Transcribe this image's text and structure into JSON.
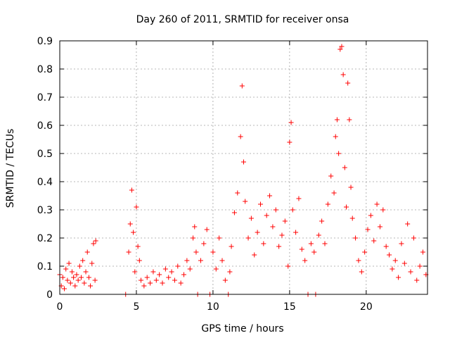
{
  "chart_data": {
    "type": "scatter",
    "title": "Day 260 of 2011, SRMTID for receiver onsa",
    "xlabel": "GPS time / hours",
    "ylabel": "SRMTID / TECUs",
    "xlim": [
      0,
      24
    ],
    "ylim": [
      0,
      0.9
    ],
    "x_ticks": [
      0,
      5,
      10,
      15,
      20
    ],
    "x_tick_labels": [
      "0",
      "5",
      "10",
      "15",
      "20"
    ],
    "y_ticks": [
      0,
      0.1,
      0.2,
      0.3,
      0.4,
      0.5,
      0.6,
      0.7,
      0.8,
      0.9
    ],
    "y_tick_labels": [
      "0",
      "0.1",
      "0.2",
      "0.3",
      "0.4",
      "0.5",
      "0.6",
      "0.7",
      "0.8",
      "0.9"
    ],
    "grid": true,
    "marker": "+",
    "color": "#ff0000",
    "series": [
      {
        "name": "SRMTID",
        "points": [
          [
            0.0,
            0.07
          ],
          [
            0.1,
            0.03
          ],
          [
            0.2,
            0.06
          ],
          [
            0.3,
            0.02
          ],
          [
            0.4,
            0.09
          ],
          [
            0.5,
            0.05
          ],
          [
            0.6,
            0.11
          ],
          [
            0.7,
            0.04
          ],
          [
            0.8,
            0.08
          ],
          [
            0.9,
            0.06
          ],
          [
            1.0,
            0.03
          ],
          [
            1.1,
            0.07
          ],
          [
            1.2,
            0.05
          ],
          [
            1.3,
            0.1
          ],
          [
            1.4,
            0.06
          ],
          [
            1.5,
            0.12
          ],
          [
            1.6,
            0.04
          ],
          [
            1.7,
            0.08
          ],
          [
            1.8,
            0.15
          ],
          [
            1.9,
            0.06
          ],
          [
            2.0,
            0.03
          ],
          [
            2.1,
            0.11
          ],
          [
            2.2,
            0.18
          ],
          [
            2.3,
            0.05
          ],
          [
            2.35,
            0.19
          ],
          [
            4.3,
            0.0
          ],
          [
            4.5,
            0.15
          ],
          [
            4.6,
            0.25
          ],
          [
            4.7,
            0.37
          ],
          [
            4.8,
            0.22
          ],
          [
            4.9,
            0.08
          ],
          [
            5.0,
            0.31
          ],
          [
            5.1,
            0.17
          ],
          [
            5.2,
            0.12
          ],
          [
            5.3,
            0.05
          ],
          [
            5.5,
            0.03
          ],
          [
            5.7,
            0.06
          ],
          [
            5.9,
            0.04
          ],
          [
            6.1,
            0.08
          ],
          [
            6.3,
            0.05
          ],
          [
            6.5,
            0.07
          ],
          [
            6.7,
            0.04
          ],
          [
            6.9,
            0.09
          ],
          [
            7.1,
            0.06
          ],
          [
            7.3,
            0.08
          ],
          [
            7.5,
            0.05
          ],
          [
            7.7,
            0.1
          ],
          [
            7.9,
            0.04
          ],
          [
            8.1,
            0.07
          ],
          [
            8.3,
            0.12
          ],
          [
            8.5,
            0.09
          ],
          [
            8.7,
            0.2
          ],
          [
            8.8,
            0.24
          ],
          [
            8.9,
            0.15
          ],
          [
            9.0,
            0.0
          ],
          [
            9.2,
            0.12
          ],
          [
            9.4,
            0.18
          ],
          [
            9.6,
            0.23
          ],
          [
            9.8,
            0.0
          ],
          [
            10.0,
            0.15
          ],
          [
            10.2,
            0.09
          ],
          [
            10.4,
            0.2
          ],
          [
            10.6,
            0.12
          ],
          [
            10.8,
            0.05
          ],
          [
            11.0,
            0.0
          ],
          [
            11.1,
            0.08
          ],
          [
            11.2,
            0.17
          ],
          [
            11.4,
            0.29
          ],
          [
            11.6,
            0.36
          ],
          [
            11.8,
            0.56
          ],
          [
            11.9,
            0.74
          ],
          [
            12.0,
            0.47
          ],
          [
            12.1,
            0.33
          ],
          [
            12.3,
            0.2
          ],
          [
            12.5,
            0.27
          ],
          [
            12.7,
            0.14
          ],
          [
            12.9,
            0.22
          ],
          [
            13.1,
            0.32
          ],
          [
            13.3,
            0.18
          ],
          [
            13.5,
            0.28
          ],
          [
            13.7,
            0.35
          ],
          [
            13.9,
            0.24
          ],
          [
            14.1,
            0.3
          ],
          [
            14.3,
            0.17
          ],
          [
            14.5,
            0.21
          ],
          [
            14.7,
            0.26
          ],
          [
            14.9,
            0.1
          ],
          [
            15.0,
            0.54
          ],
          [
            15.1,
            0.61
          ],
          [
            15.2,
            0.3
          ],
          [
            15.4,
            0.22
          ],
          [
            15.6,
            0.34
          ],
          [
            15.8,
            0.16
          ],
          [
            16.0,
            0.12
          ],
          [
            16.2,
            0.0
          ],
          [
            16.4,
            0.18
          ],
          [
            16.6,
            0.15
          ],
          [
            16.7,
            0.0
          ],
          [
            16.9,
            0.21
          ],
          [
            17.1,
            0.26
          ],
          [
            17.3,
            0.18
          ],
          [
            17.5,
            0.32
          ],
          [
            17.7,
            0.42
          ],
          [
            17.9,
            0.36
          ],
          [
            18.0,
            0.56
          ],
          [
            18.1,
            0.62
          ],
          [
            18.2,
            0.5
          ],
          [
            18.3,
            0.87
          ],
          [
            18.4,
            0.88
          ],
          [
            18.5,
            0.78
          ],
          [
            18.6,
            0.45
          ],
          [
            18.7,
            0.31
          ],
          [
            18.8,
            0.75
          ],
          [
            18.9,
            0.62
          ],
          [
            19.0,
            0.38
          ],
          [
            19.1,
            0.27
          ],
          [
            19.3,
            0.2
          ],
          [
            19.5,
            0.12
          ],
          [
            19.7,
            0.08
          ],
          [
            19.9,
            0.15
          ],
          [
            20.1,
            0.23
          ],
          [
            20.3,
            0.28
          ],
          [
            20.5,
            0.19
          ],
          [
            20.7,
            0.32
          ],
          [
            20.9,
            0.24
          ],
          [
            21.1,
            0.3
          ],
          [
            21.3,
            0.17
          ],
          [
            21.5,
            0.14
          ],
          [
            21.7,
            0.09
          ],
          [
            21.9,
            0.12
          ],
          [
            22.1,
            0.06
          ],
          [
            22.3,
            0.18
          ],
          [
            22.5,
            0.11
          ],
          [
            22.7,
            0.25
          ],
          [
            22.9,
            0.08
          ],
          [
            23.1,
            0.2
          ],
          [
            23.3,
            0.05
          ],
          [
            23.5,
            0.1
          ],
          [
            23.7,
            0.15
          ],
          [
            23.9,
            0.07
          ]
        ]
      }
    ]
  }
}
